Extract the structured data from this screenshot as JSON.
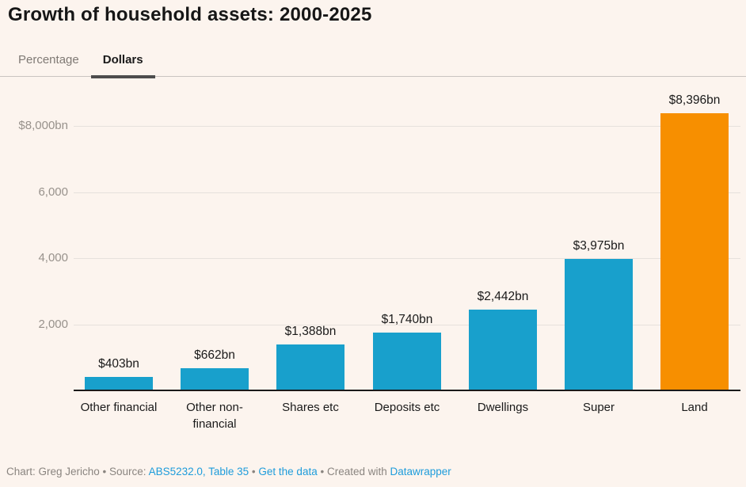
{
  "title": "Growth of household assets: 2000-2025",
  "tabs": [
    {
      "label": "Percentage",
      "active": false
    },
    {
      "label": "Dollars",
      "active": true
    }
  ],
  "chart_data": {
    "type": "bar",
    "title": "Growth of household assets: 2000-2025",
    "categories": [
      "Other financial",
      "Other non-financial",
      "Shares etc",
      "Deposits etc",
      "Dwellings",
      "Super",
      "Land"
    ],
    "values": [
      403,
      662,
      1388,
      1740,
      2442,
      3975,
      8396
    ],
    "value_labels": [
      "$403bn",
      "$662bn",
      "$1,388bn",
      "$1,740bn",
      "$2,442bn",
      "$3,975bn",
      "$8,396bn"
    ],
    "bar_colors": [
      "#18a0cc",
      "#18a0cc",
      "#18a0cc",
      "#18a0cc",
      "#18a0cc",
      "#18a0cc",
      "#f78f00"
    ],
    "default_bar_color": "#18a0cc",
    "highlight_bar_color": "#f78f00",
    "xlabel": "",
    "ylabel": "",
    "ylim": [
      0,
      8700
    ],
    "grid": "horizontal",
    "legend_position": "none",
    "y_ticks": [
      {
        "value": 2000,
        "label": "2,000"
      },
      {
        "value": 4000,
        "label": "4,000"
      },
      {
        "value": 6000,
        "label": "6,000"
      },
      {
        "value": 8000,
        "label": "$8,000bn"
      }
    ]
  },
  "footer": {
    "prefix": "Chart: Greg Jericho • Source: ",
    "source_link": "ABS5232.0, Table 35",
    "sep1": " • ",
    "data_link": "Get the data",
    "sep2": " • Created with ",
    "credit_link": "Datawrapper"
  }
}
